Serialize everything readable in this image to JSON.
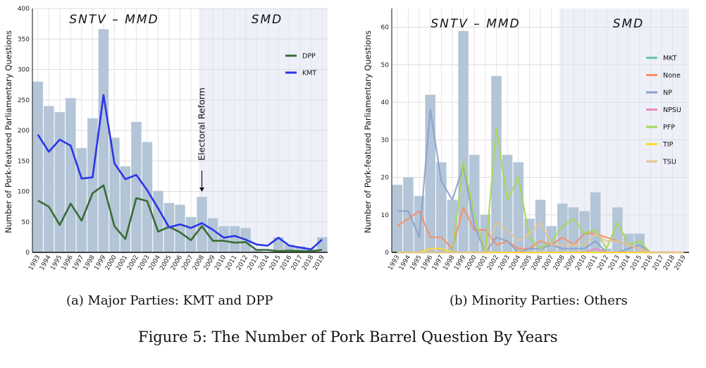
{
  "figure": {
    "caption": "Figure 5: The Number of Pork Barrel Question By Years",
    "subcaption_a": "(a) Major Parties: KMT and DPP",
    "subcaption_b": "(b) Minority Parties: Others"
  },
  "chart_data": [
    {
      "type": "bar",
      "id": "a",
      "ylabel": "Number of Pork-featured Parliamentary Questions",
      "xlabel": "",
      "categories": [
        "1993",
        "1994",
        "1995",
        "1996",
        "1997",
        "1998",
        "1999",
        "2000",
        "2001",
        "2002",
        "2003",
        "2004",
        "2005",
        "2006",
        "2007",
        "2008",
        "2009",
        "2010",
        "2011",
        "2012",
        "2013",
        "2014",
        "2015",
        "2016",
        "2017",
        "2018",
        "2019"
      ],
      "ylim": [
        0,
        400
      ],
      "yticks": [
        0,
        50,
        100,
        150,
        200,
        250,
        300,
        350,
        400
      ],
      "grid": true,
      "legend": "top-right",
      "bars": {
        "color": "#b3c5d7",
        "values": [
          280,
          240,
          230,
          253,
          171,
          220,
          366,
          188,
          141,
          214,
          181,
          101,
          81,
          78,
          58,
          91,
          56,
          43,
          43,
          40,
          5,
          0,
          25,
          13,
          10,
          5,
          25
        ]
      },
      "series": [
        {
          "name": "DPP",
          "color": "#3a6b35",
          "values": [
            85,
            75,
            45,
            80,
            52,
            97,
            110,
            43,
            22,
            89,
            84,
            34,
            42,
            33,
            20,
            43,
            19,
            19,
            16,
            17,
            4,
            4,
            2,
            3,
            2,
            2,
            4
          ]
        },
        {
          "name": "KMT",
          "color": "#2b35e8",
          "values": [
            193,
            165,
            185,
            175,
            121,
            123,
            258,
            146,
            120,
            127,
            102,
            72,
            41,
            46,
            40,
            48,
            37,
            24,
            27,
            21,
            13,
            11,
            24,
            11,
            8,
            5,
            21
          ]
        }
      ],
      "regions": [
        {
          "label": "SNTV – MMD",
          "from": "1993",
          "to": "2008"
        },
        {
          "label": "SMD",
          "from": "2008",
          "to": "2019",
          "shaded": true
        }
      ],
      "annotation": {
        "text": "Electoral Reform",
        "at": "2008"
      }
    },
    {
      "type": "bar",
      "id": "b",
      "ylabel": "Number of Pork-featured Parliamentary Questions",
      "xlabel": "",
      "categories": [
        "1993",
        "1994",
        "1995",
        "1996",
        "1997",
        "1998",
        "1999",
        "2000",
        "2001",
        "2002",
        "2003",
        "2004",
        "2005",
        "2006",
        "2007",
        "2008",
        "2009",
        "2010",
        "2011",
        "2012",
        "2013",
        "2014",
        "2015",
        "2016",
        "2017",
        "2018",
        "2019"
      ],
      "ylim": [
        0,
        65
      ],
      "yticks": [
        0,
        10,
        20,
        30,
        40,
        50,
        60
      ],
      "grid": true,
      "legend": "right",
      "bars": {
        "color": "#b3c5d7",
        "values": [
          18,
          20,
          15,
          42,
          24,
          14,
          59,
          26,
          10,
          47,
          26,
          24,
          9,
          14,
          7,
          13,
          12,
          11,
          16,
          1,
          12,
          5,
          5,
          0,
          0,
          0,
          0
        ]
      },
      "series": [
        {
          "name": "MKT",
          "color": "#66c2a5",
          "values": [
            0,
            0,
            0,
            0,
            0,
            0,
            0,
            0,
            0,
            0,
            0,
            0,
            0,
            0,
            0,
            0,
            0,
            0,
            0,
            0,
            0,
            0,
            0,
            0,
            0,
            0,
            0
          ]
        },
        {
          "name": "None",
          "color": "#fc8d62",
          "values": [
            7,
            9,
            11,
            4,
            4,
            1,
            12,
            6,
            6,
            2,
            3,
            1,
            1,
            3,
            2,
            4,
            2,
            5,
            5,
            4,
            3,
            2,
            1,
            0,
            0,
            0,
            0
          ]
        },
        {
          "name": "NP",
          "color": "#8da0cb",
          "values": [
            11,
            11,
            4,
            38,
            19,
            14,
            23,
            7,
            0,
            4,
            3,
            0,
            1,
            1,
            2,
            1,
            1,
            1,
            3,
            0,
            0,
            1,
            2,
            0,
            0,
            0,
            0
          ]
        },
        {
          "name": "NPSU",
          "color": "#e78ac3",
          "values": [
            0,
            0,
            0,
            0,
            0,
            0,
            0,
            0,
            0,
            0,
            0,
            0,
            0,
            0,
            0,
            0,
            0,
            0,
            1,
            0,
            0,
            0,
            0,
            0,
            0,
            0,
            0
          ]
        },
        {
          "name": "PFP",
          "color": "#a6d854",
          "values": [
            0,
            0,
            0,
            0,
            0,
            0,
            24,
            10,
            0,
            33,
            14,
            20,
            4,
            1,
            3,
            7,
            9,
            5,
            6,
            1,
            8,
            2,
            3,
            0,
            0,
            0,
            0
          ]
        },
        {
          "name": "TIP",
          "color": "#ffd92f",
          "values": [
            0,
            0,
            0,
            1,
            1,
            0,
            0,
            0,
            0,
            0,
            0,
            0,
            0,
            0,
            0,
            0,
            0,
            0,
            0,
            0,
            0,
            0,
            0,
            0,
            0,
            0,
            0
          ]
        },
        {
          "name": "TSU",
          "color": "#e5c494",
          "values": [
            0,
            0,
            0,
            0,
            0,
            0,
            0,
            0,
            0,
            8,
            6,
            3,
            5,
            8,
            2,
            2,
            2,
            2,
            5,
            3,
            3,
            2,
            1,
            0,
            0,
            0,
            0
          ]
        }
      ],
      "regions": [
        {
          "label": "SNTV – MMD",
          "from": "1993",
          "to": "2008"
        },
        {
          "label": "SMD",
          "from": "2008",
          "to": "2019",
          "shaded": true
        }
      ]
    }
  ]
}
